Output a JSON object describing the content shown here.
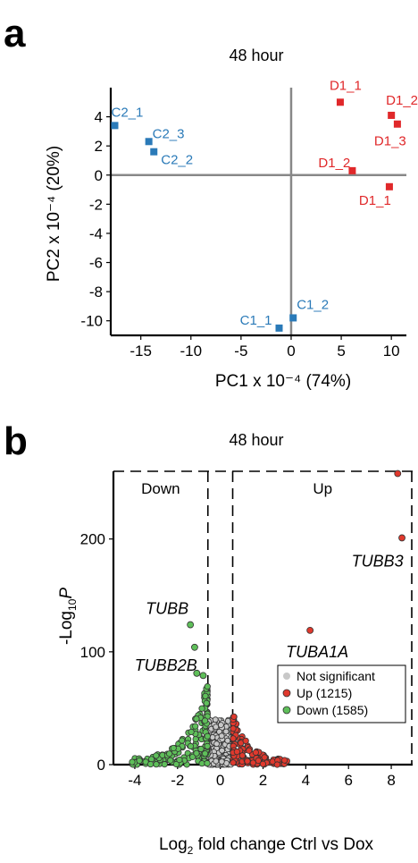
{
  "panel_a": {
    "letter": "a"
  },
  "panel_b": {
    "letter": "b"
  },
  "chart_data": [
    {
      "type": "scatter",
      "title": "48 hour",
      "xlabel": "PC1 x 10⁻⁴ (74%)",
      "ylabel": "PC2 x 10⁻⁴ (20%)",
      "xlim": [
        -18,
        11.5
      ],
      "ylim": [
        -11,
        6
      ],
      "xticks": [
        -15,
        -10,
        -5,
        0,
        5,
        10
      ],
      "yticks": [
        4,
        2,
        0,
        -2,
        -4,
        -6,
        -8,
        -10
      ],
      "colors": {
        "C": "#2a7ab8",
        "D": "#e0282a"
      },
      "series": [
        {
          "group": "C",
          "points": [
            {
              "label": "C2_1",
              "x": -17.6,
              "y": 3.4
            },
            {
              "label": "C2_3",
              "x": -14.2,
              "y": 2.3
            },
            {
              "label": "C2_2",
              "x": -13.7,
              "y": 1.6
            },
            {
              "label": "C1_1",
              "x": -1.2,
              "y": -10.5
            },
            {
              "label": "C1_2",
              "x": 0.2,
              "y": -9.8
            }
          ]
        },
        {
          "group": "D",
          "points": [
            {
              "label": "D1_1",
              "x": 4.9,
              "y": 5.0
            },
            {
              "label": "D1_2",
              "x": 10.0,
              "y": 4.1
            },
            {
              "label": "D1_3",
              "x": 10.6,
              "y": 3.5
            },
            {
              "label": "D1_2",
              "x": 6.1,
              "y": 0.3
            },
            {
              "label": "D1_1",
              "x": 9.8,
              "y": -0.8
            }
          ]
        }
      ]
    },
    {
      "type": "scatter",
      "title": "48 hour",
      "xlabel_main": "Log",
      "xlabel_sub": "2",
      "xlabel_rest": " fold change Ctrl vs Dox",
      "ylabel_main": "-Log",
      "ylabel_sub": "10",
      "ylabel_var": "P",
      "xlim": [
        -5,
        9
      ],
      "ylim": [
        0,
        260
      ],
      "xticks": [
        -4,
        -2,
        0,
        2,
        4,
        6,
        8
      ],
      "yticks": [
        0,
        100,
        200
      ],
      "regions": {
        "down": "Down",
        "up": "Up"
      },
      "thresholds": {
        "fc_low": -0.58,
        "fc_high": 0.58
      },
      "colors": {
        "not_significant": "#c8c8c8",
        "up": "#e0392d",
        "down": "#5fbf5a"
      },
      "legend": {
        "position": "right",
        "entries": [
          {
            "key": "not_significant",
            "label": "Not significant"
          },
          {
            "key": "up",
            "label": "Up (1215)"
          },
          {
            "key": "down",
            "label": "Down (1585)"
          }
        ]
      },
      "annotations": [
        {
          "text": "TUBB3",
          "x": 8.4,
          "y": 201
        },
        {
          "text": "TUBA1A",
          "x": 4.2,
          "y": 119
        },
        {
          "text": "TUBB",
          "x": -1.4,
          "y": 124
        },
        {
          "text": "TUBB2B",
          "x": -1.0,
          "y": 80
        }
      ],
      "highlight_points": {
        "up": [
          [
            8.3,
            258
          ],
          [
            8.5,
            201
          ],
          [
            4.2,
            119
          ]
        ],
        "down": [
          [
            -1.4,
            124
          ],
          [
            -1.2,
            104
          ],
          [
            -1.1,
            81
          ],
          [
            -0.8,
            79
          ]
        ]
      },
      "up_cloud_xrange": [
        0.58,
        3.2
      ],
      "down_cloud_xrange": [
        -4.2,
        -0.58
      ]
    }
  ]
}
